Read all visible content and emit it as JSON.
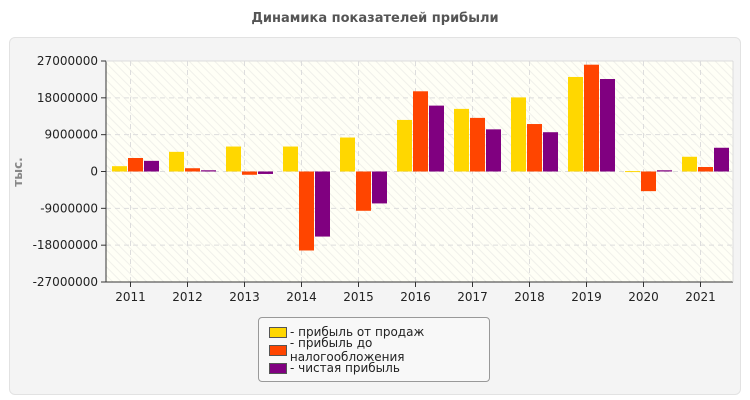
{
  "chart_data": {
    "type": "bar",
    "title": "Динамика показателей прибыли",
    "ylabel": "тыс.",
    "ylim": [
      -27000000,
      27000000
    ],
    "yticks": [
      "27000000",
      "18000000",
      "9000000",
      "0",
      "-9000000",
      "-18000000",
      "-27000000"
    ],
    "grid": true,
    "legend_position": "bottom",
    "categories": [
      "2011",
      "2012",
      "2013",
      "2014",
      "2015",
      "2016",
      "2017",
      "2018",
      "2019",
      "2020",
      "2021"
    ],
    "series": [
      {
        "name": "- прибыль от продаж",
        "color": "#ffd700",
        "values": [
          1300000,
          4800000,
          6100000,
          6100000,
          8300000,
          12600000,
          15300000,
          18100000,
          23100000,
          100000,
          3600000
        ]
      },
      {
        "name": "- прибыль до налогообложения",
        "color": "#ff4500",
        "values": [
          3300000,
          800000,
          -800000,
          -19300000,
          -9600000,
          19600000,
          13100000,
          11600000,
          26100000,
          -4800000,
          1100000
        ]
      },
      {
        "name": "- чистая прибыль",
        "color": "#800080",
        "values": [
          2600000,
          300000,
          -600000,
          -15900000,
          -7800000,
          16100000,
          10300000,
          9600000,
          22600000,
          300000,
          5800000
        ]
      }
    ]
  }
}
